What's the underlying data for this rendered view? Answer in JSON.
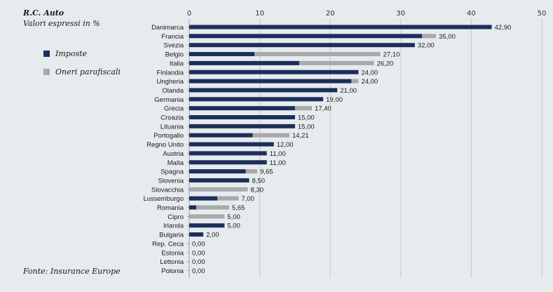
{
  "header": {
    "title": "R.C. Auto",
    "subtitle": "Valori espressi in %"
  },
  "legend": [
    {
      "label": "Imposte",
      "color": "#1c2f5a"
    },
    {
      "label": "Oneri parafiscali",
      "color": "#a8a9ab"
    }
  ],
  "source": "Fonte: Insurance Europe",
  "chart_data": {
    "type": "bar",
    "orientation": "horizontal",
    "stacked": true,
    "xlim": [
      0,
      50
    ],
    "ticks": [
      0,
      10,
      20,
      30,
      40,
      50
    ],
    "categories": [
      "Danimarca",
      "Francia",
      "Svezia",
      "Belgio",
      "Italia",
      "Finlandia",
      "Ungheria",
      "Olanda",
      "Germania",
      "Grecia",
      "Croazia",
      "Lituania",
      "Portogallo",
      "Regno Unito",
      "Austria",
      "Malta",
      "Spagna",
      "Slovenia",
      "Slovacchia",
      "Lussemburgo",
      "Romania",
      "Cipro",
      "Irlanda",
      "Bulgaria",
      "Rep. Ceca",
      "Estonia",
      "Lettonia",
      "Polonia"
    ],
    "series": [
      {
        "name": "Imposte",
        "color": "#1c2f5a",
        "values": [
          42.9,
          33.0,
          32.0,
          9.25,
          15.6,
          24.0,
          23.0,
          21.0,
          19.0,
          15.0,
          15.0,
          15.0,
          9.0,
          12.0,
          11.0,
          11.0,
          8.0,
          8.5,
          0.0,
          4.0,
          1.0,
          0.0,
          5.0,
          2.0,
          0.0,
          0.0,
          0.0,
          0.0
        ]
      },
      {
        "name": "Oneri parafiscali",
        "color": "#a8a9ab",
        "values": [
          0.0,
          2.0,
          0.0,
          17.85,
          10.6,
          0.0,
          1.0,
          0.0,
          0.0,
          2.4,
          0.0,
          0.0,
          5.21,
          0.0,
          0.0,
          0.0,
          1.65,
          0.0,
          8.3,
          3.0,
          4.65,
          5.0,
          0.0,
          0.0,
          0.0,
          0.0,
          0.0,
          0.0
        ]
      }
    ],
    "totals": [
      "42,90",
      "35,00",
      "32,00",
      "27,10",
      "26,20",
      "24,00",
      "24,00",
      "21,00",
      "19,00",
      "17,40",
      "15,00",
      "15,00",
      "14,21",
      "12,00",
      "11,00",
      "11,00",
      "9,65",
      "8,50",
      "8,30",
      "7,00",
      "5,65",
      "5,00",
      "5,00",
      "2,00",
      "0,00",
      "0,00",
      "0,00",
      "0,00"
    ]
  }
}
